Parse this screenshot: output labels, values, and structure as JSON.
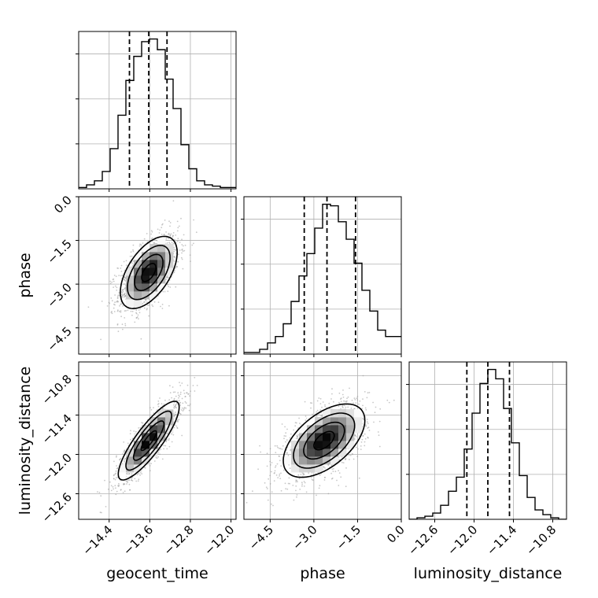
{
  "chart_data": {
    "type": "corner",
    "parameters": [
      "geocent_time",
      "phase",
      "luminosity_distance"
    ],
    "axis_labels": {
      "x": [
        "geocent_time",
        "phase",
        "luminosity_distance"
      ],
      "y": [
        "phase",
        "luminosity_distance"
      ]
    },
    "ranges": {
      "geocent_time": [
        -15.0,
        -11.9
      ],
      "phase": [
        -5.4,
        0.0
      ],
      "luminosity_distance": [
        -12.99,
        -10.59
      ]
    },
    "ticks": {
      "geocent_time": [
        "−14.4",
        "−13.6",
        "−12.8",
        "−12.0"
      ],
      "phase": [
        "−4.5",
        "−3.0",
        "−1.5",
        "0.0"
      ],
      "luminosity_distance": [
        "−12.6",
        "−12.0",
        "−11.4",
        "−10.8"
      ]
    },
    "quantiles": {
      "geocent_time": [
        -14.0,
        -13.62,
        -13.26
      ],
      "phase": [
        -3.33,
        -2.55,
        -1.57
      ],
      "luminosity_distance": [
        -12.11,
        -11.79,
        -11.46
      ]
    },
    "histograms": {
      "geocent_time": {
        "edges": [
          -15.0,
          -14.845,
          -14.69,
          -14.535,
          -14.38,
          -14.225,
          -14.07,
          -13.915,
          -13.76,
          -13.605,
          -13.45,
          -13.295,
          -13.14,
          -12.985,
          -12.83,
          -12.675,
          -12.52,
          -12.365,
          -12.21,
          -12.055,
          -11.9
        ],
        "counts": [
          1,
          3,
          6,
          13,
          30,
          55,
          81,
          99,
          110,
          112,
          104,
          82,
          60,
          33,
          15,
          6,
          3,
          2,
          1,
          1
        ]
      },
      "phase": {
        "edges": [
          -5.4,
          -5.13,
          -4.86,
          -4.59,
          -4.32,
          -4.05,
          -3.78,
          -3.51,
          -3.24,
          -2.97,
          -2.7,
          -2.43,
          -2.16,
          -1.89,
          -1.62,
          -1.35,
          -1.08,
          -0.81,
          -0.54,
          -0.27,
          0.0
        ],
        "counts": [
          1,
          1,
          3,
          7,
          11,
          19,
          33,
          49,
          63,
          79,
          94,
          93,
          83,
          72,
          57,
          40,
          27,
          15,
          11,
          11
        ]
      },
      "luminosity_distance": {
        "edges": [
          -12.99,
          -12.87,
          -12.75,
          -12.63,
          -12.51,
          -12.39,
          -12.27,
          -12.15,
          -12.03,
          -11.91,
          -11.79,
          -11.67,
          -11.55,
          -11.43,
          -11.31,
          -11.19,
          -11.07,
          -10.95,
          -10.83,
          -10.71,
          -10.59
        ],
        "counts": [
          0,
          1,
          2,
          4,
          9,
          18,
          27,
          45,
          68,
          87,
          96,
          90,
          71,
          49,
          28,
          14,
          6,
          3,
          1,
          0
        ]
      }
    },
    "pairs": [
      {
        "x": "geocent_time",
        "y": "phase",
        "mean": [
          -13.62,
          -2.6
        ],
        "sd": [
          0.28,
          0.62
        ],
        "rho": 0.55
      },
      {
        "x": "geocent_time",
        "y": "luminosity_distance",
        "mean": [
          -13.62,
          -11.79
        ],
        "sd": [
          0.3,
          0.3
        ],
        "rho": 0.85
      },
      {
        "x": "phase",
        "y": "luminosity_distance",
        "mean": [
          -2.65,
          -11.79
        ],
        "sd": [
          0.7,
          0.28
        ],
        "rho": 0.55
      }
    ],
    "grid": true,
    "legend": "none"
  }
}
